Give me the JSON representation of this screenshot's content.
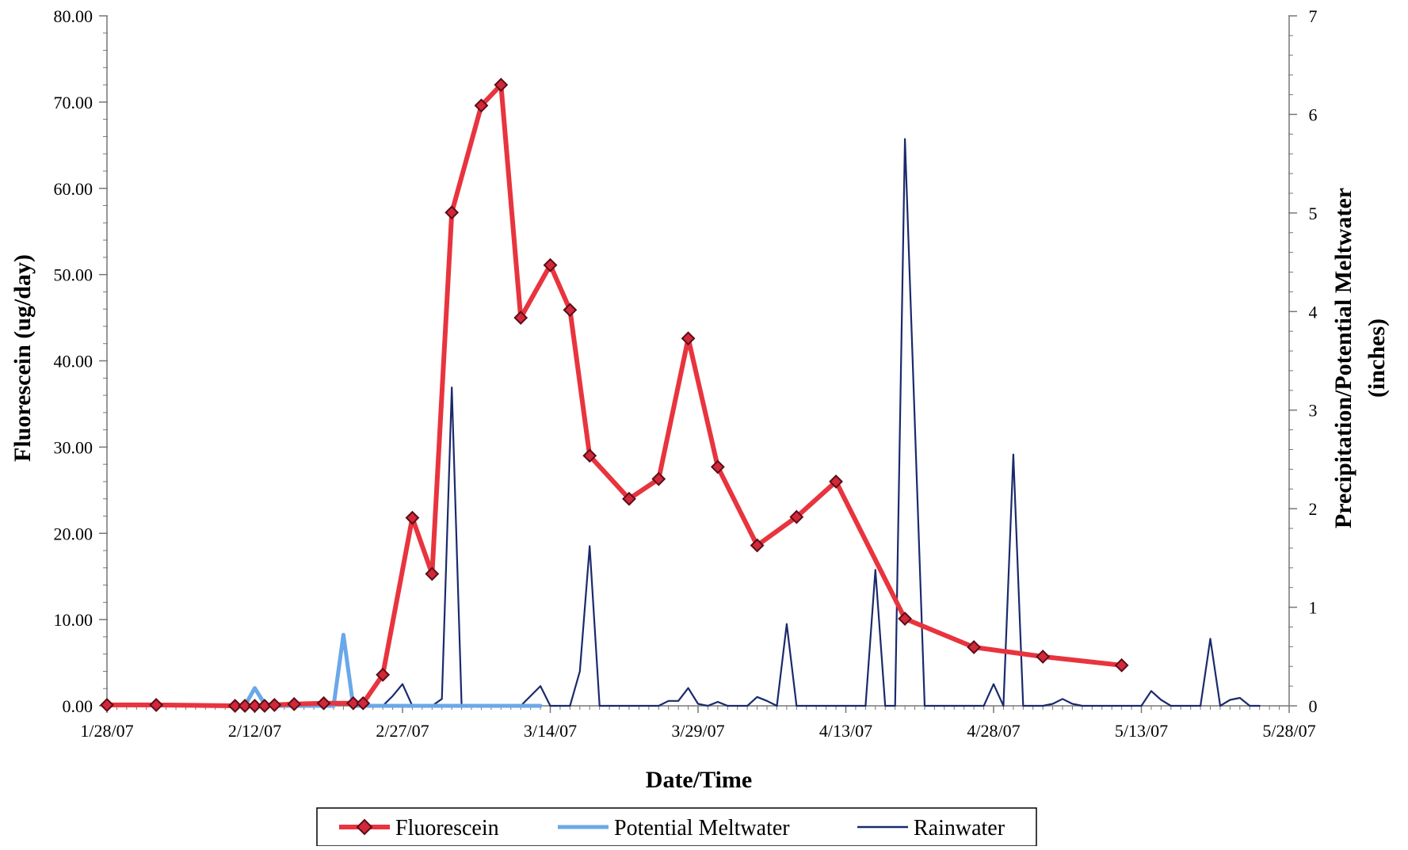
{
  "chart_data": {
    "type": "line",
    "title": "",
    "xlabel": "Date/Time",
    "ylabel_left": "Fluorescein (ug/day)",
    "ylabel_right_line1": "Precipitation/Potential Meltwater",
    "ylabel_right_line2": "(inches)",
    "x_tick_labels": [
      "1/28/07",
      "2/12/07",
      "2/27/07",
      "3/14/07",
      "3/29/07",
      "4/13/07",
      "4/28/07",
      "5/13/07",
      "5/28/07"
    ],
    "x_range": [
      "2007-01-28",
      "2007-05-28"
    ],
    "y_left_range": [
      0,
      80
    ],
    "y_left_ticks": [
      "0.00",
      "10.00",
      "20.00",
      "30.00",
      "40.00",
      "50.00",
      "60.00",
      "70.00",
      "80.00"
    ],
    "y_right_range": [
      0,
      7
    ],
    "y_right_ticks": [
      "0",
      "1",
      "2",
      "3",
      "4",
      "5",
      "6",
      "7"
    ],
    "grid": false,
    "legend_position": "bottom-center",
    "legend": [
      "Fluorescein",
      "Potential Meltwater",
      "Rainwater"
    ],
    "series": [
      {
        "name": "Fluorescein",
        "axis": "left",
        "color": "#e8343e",
        "marker": "diamond",
        "points": [
          [
            "2007-01-28",
            0.1
          ],
          [
            "2007-02-02",
            0.1
          ],
          [
            "2007-02-10",
            0.0
          ],
          [
            "2007-02-11",
            0.0
          ],
          [
            "2007-02-12",
            0.0
          ],
          [
            "2007-02-13",
            0.0
          ],
          [
            "2007-02-14",
            0.1
          ],
          [
            "2007-02-16",
            0.2
          ],
          [
            "2007-02-19",
            0.3
          ],
          [
            "2007-02-22",
            0.3
          ],
          [
            "2007-02-23",
            0.3
          ],
          [
            "2007-02-25",
            3.6
          ],
          [
            "2007-02-28",
            21.8
          ],
          [
            "2007-03-02",
            15.3
          ],
          [
            "2007-03-04",
            57.2
          ],
          [
            "2007-03-07",
            69.6
          ],
          [
            "2007-03-09",
            72.0
          ],
          [
            "2007-03-11",
            45.0
          ],
          [
            "2007-03-14",
            51.1
          ],
          [
            "2007-03-16",
            45.9
          ],
          [
            "2007-03-18",
            29.0
          ],
          [
            "2007-03-22",
            24.0
          ],
          [
            "2007-03-25",
            26.3
          ],
          [
            "2007-03-28",
            42.6
          ],
          [
            "2007-03-31",
            27.7
          ],
          [
            "2007-04-04",
            18.6
          ],
          [
            "2007-04-08",
            21.9
          ],
          [
            "2007-04-12",
            26.0
          ],
          [
            "2007-04-19",
            10.1
          ],
          [
            "2007-04-26",
            6.8
          ],
          [
            "2007-05-03",
            5.7
          ],
          [
            "2007-05-11",
            4.7
          ]
        ]
      },
      {
        "name": "Potential Meltwater",
        "axis": "right",
        "color": "#6aa8e8",
        "marker": "none",
        "points": [
          [
            "2007-02-10",
            0.0
          ],
          [
            "2007-02-11",
            0.0
          ],
          [
            "2007-02-12",
            0.18
          ],
          [
            "2007-02-13",
            0.02
          ],
          [
            "2007-02-14",
            0.0
          ],
          [
            "2007-02-20",
            0.0
          ],
          [
            "2007-02-21",
            0.72
          ],
          [
            "2007-02-22",
            0.0
          ],
          [
            "2007-02-24",
            0.0
          ],
          [
            "2007-03-13",
            0.0
          ]
        ]
      },
      {
        "name": "Rainwater",
        "axis": "right",
        "color": "#1a2a6c",
        "marker": "none",
        "points": [
          [
            "2007-02-22",
            0.0
          ],
          [
            "2007-02-25",
            0.0
          ],
          [
            "2007-02-26",
            0.1
          ],
          [
            "2007-02-27",
            0.22
          ],
          [
            "2007-02-28",
            0.0
          ],
          [
            "2007-03-02",
            0.0
          ],
          [
            "2007-03-03",
            0.07
          ],
          [
            "2007-03-04",
            3.23
          ],
          [
            "2007-03-05",
            0.0
          ],
          [
            "2007-03-10",
            0.0
          ],
          [
            "2007-03-11",
            0.0
          ],
          [
            "2007-03-12",
            0.1
          ],
          [
            "2007-03-13",
            0.2
          ],
          [
            "2007-03-14",
            0.0
          ],
          [
            "2007-03-16",
            0.0
          ],
          [
            "2007-03-17",
            0.35
          ],
          [
            "2007-03-18",
            1.62
          ],
          [
            "2007-03-19",
            0.0
          ],
          [
            "2007-03-25",
            0.0
          ],
          [
            "2007-03-26",
            0.05
          ],
          [
            "2007-03-27",
            0.05
          ],
          [
            "2007-03-28",
            0.18
          ],
          [
            "2007-03-29",
            0.02
          ],
          [
            "2007-03-30",
            0.0
          ],
          [
            "2007-03-31",
            0.04
          ],
          [
            "2007-04-01",
            0.0
          ],
          [
            "2007-04-03",
            0.0
          ],
          [
            "2007-04-04",
            0.09
          ],
          [
            "2007-04-05",
            0.05
          ],
          [
            "2007-04-06",
            0.0
          ],
          [
            "2007-04-07",
            0.83
          ],
          [
            "2007-04-08",
            0.0
          ],
          [
            "2007-04-15",
            0.0
          ],
          [
            "2007-04-16",
            1.38
          ],
          [
            "2007-04-17",
            0.0
          ],
          [
            "2007-04-18",
            0.0
          ],
          [
            "2007-04-19",
            5.75
          ],
          [
            "2007-04-21",
            0.0
          ],
          [
            "2007-04-27",
            0.0
          ],
          [
            "2007-04-28",
            0.22
          ],
          [
            "2007-04-29",
            0.0
          ],
          [
            "2007-04-30",
            2.55
          ],
          [
            "2007-05-01",
            0.0
          ],
          [
            "2007-05-03",
            0.0
          ],
          [
            "2007-05-04",
            0.02
          ],
          [
            "2007-05-05",
            0.07
          ],
          [
            "2007-05-06",
            0.02
          ],
          [
            "2007-05-07",
            0.0
          ],
          [
            "2007-05-12",
            0.0
          ],
          [
            "2007-05-13",
            0.0
          ],
          [
            "2007-05-14",
            0.15
          ],
          [
            "2007-05-15",
            0.06
          ],
          [
            "2007-05-16",
            0.0
          ],
          [
            "2007-05-19",
            0.0
          ],
          [
            "2007-05-20",
            0.68
          ],
          [
            "2007-05-21",
            0.0
          ],
          [
            "2007-05-22",
            0.06
          ],
          [
            "2007-05-23",
            0.08
          ],
          [
            "2007-05-24",
            0.0
          ],
          [
            "2007-05-25",
            0.0
          ]
        ]
      }
    ]
  }
}
